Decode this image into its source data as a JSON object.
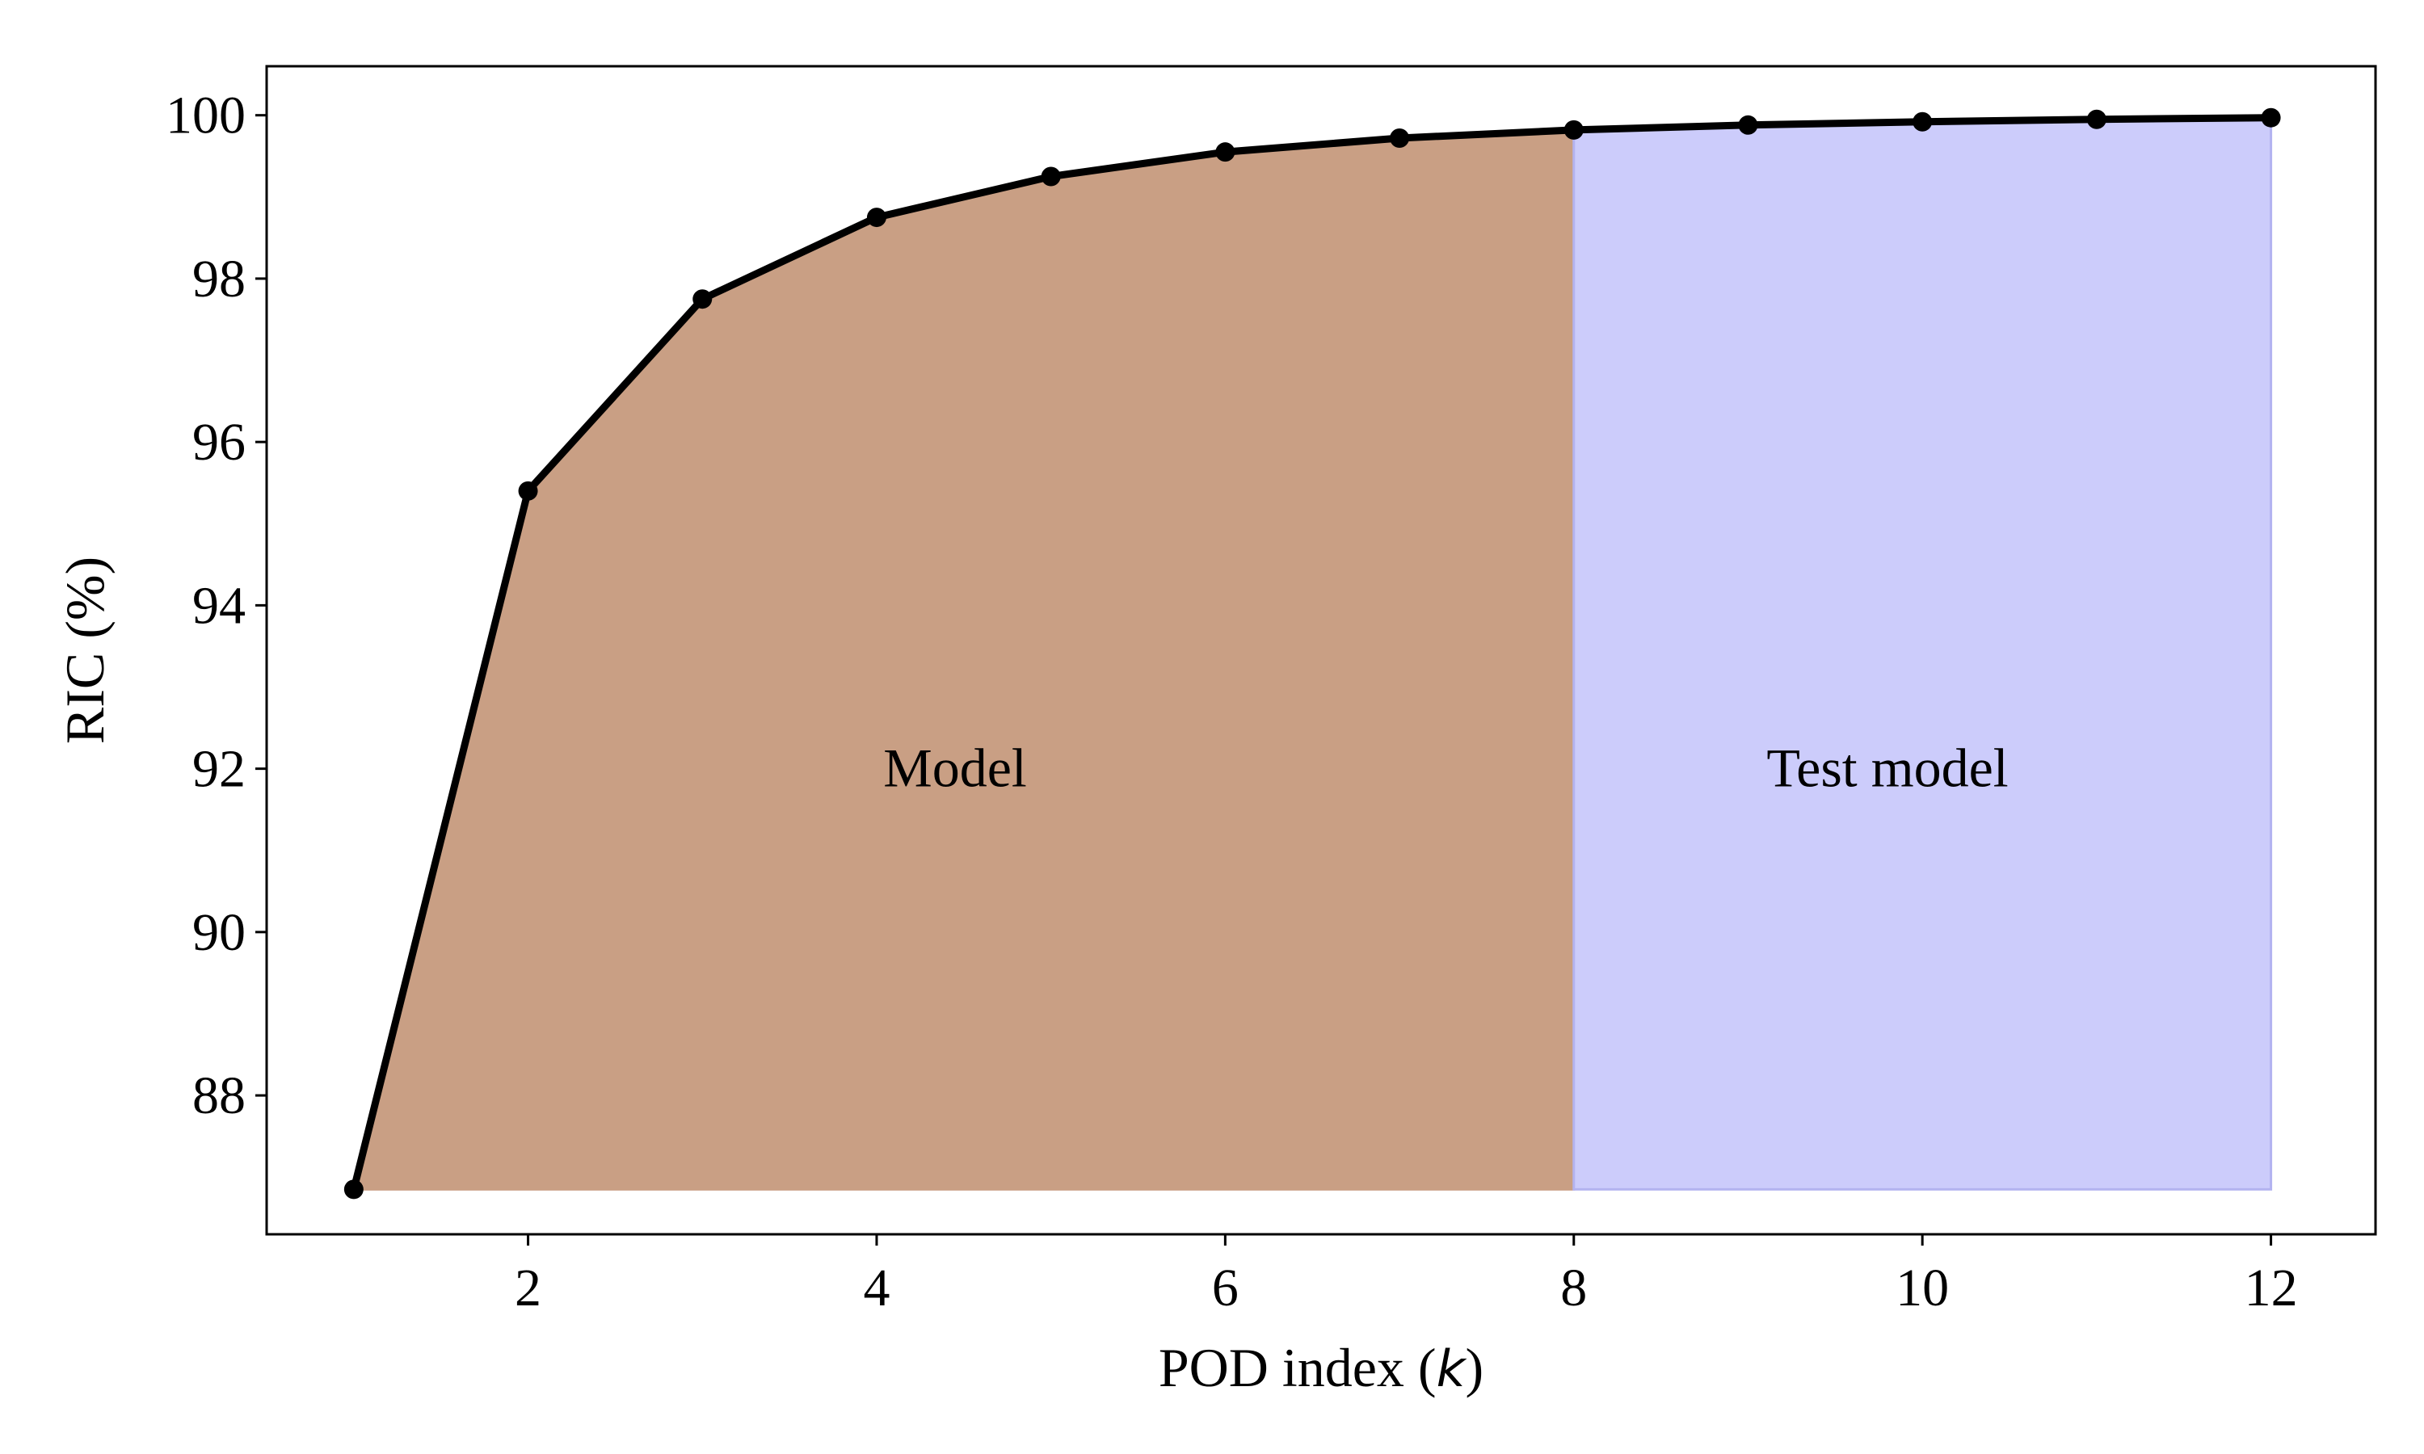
{
  "chart_data": {
    "type": "line",
    "title": "",
    "xlabel_prefix": "POD index (",
    "xlabel_var": "k",
    "xlabel_suffix": ")",
    "ylabel": "RIC (%)",
    "xlim": [
      0.5,
      12.6
    ],
    "ylim": [
      86.3,
      100.6
    ],
    "xticks": [
      2,
      4,
      6,
      8,
      10,
      12
    ],
    "yticks": [
      88,
      90,
      92,
      94,
      96,
      98,
      100
    ],
    "grid": false,
    "x": [
      1,
      2,
      3,
      4,
      5,
      6,
      7,
      8,
      9,
      10,
      11,
      12
    ],
    "series": [
      {
        "values": [
          86.85,
          95.4,
          97.75,
          98.75,
          99.25,
          99.55,
          99.72,
          99.82,
          99.88,
          99.92,
          99.95,
          99.97
        ]
      }
    ],
    "line_color": "#000000",
    "regions": [
      {
        "label": "Model",
        "x_start": 1,
        "x_end": 8,
        "color": "#c99f84",
        "label_x": 4.45,
        "label_y": 92
      },
      {
        "label": "Test model",
        "x_start": 8,
        "x_end": 12,
        "color": "#ccccfb",
        "edge_color": "#b3b3f0",
        "label_x": 9.8,
        "label_y": 92
      }
    ],
    "fill_baseline": 86.85
  }
}
